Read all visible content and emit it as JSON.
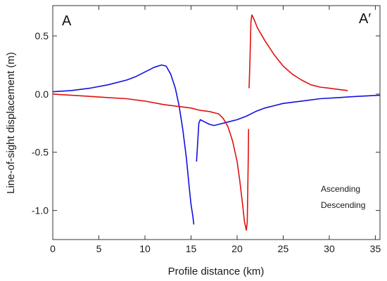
{
  "chart_data": {
    "type": "line",
    "title": "",
    "xlabel": "Profile distance (km)",
    "ylabel": "Line-of-sight displacement (m)",
    "xlim": [
      0,
      35.5
    ],
    "ylim": [
      -1.25,
      0.76
    ],
    "xticks": [
      0,
      5,
      10,
      15,
      20,
      25,
      30,
      35
    ],
    "yticks": [
      0.5,
      0.0,
      -0.5,
      -1.0
    ],
    "ytick_labels": [
      "0.5",
      "0.0",
      "-0.5",
      "-1.0"
    ],
    "grid": false,
    "legend_position": "bottom-right",
    "annotations": [
      {
        "text": "A",
        "position": "top-left"
      },
      {
        "text": "A′",
        "position": "top-right"
      }
    ],
    "series": [
      {
        "name": "Ascending",
        "color": "#1010e0",
        "segments": [
          [
            [
              0,
              0.02
            ],
            [
              2,
              0.03
            ],
            [
              4,
              0.05
            ],
            [
              6,
              0.08
            ],
            [
              8,
              0.12
            ],
            [
              9,
              0.15
            ],
            [
              10,
              0.19
            ],
            [
              11,
              0.23
            ],
            [
              11.8,
              0.25
            ],
            [
              12.3,
              0.24
            ],
            [
              12.8,
              0.17
            ],
            [
              13.3,
              0.05
            ],
            [
              13.7,
              -0.1
            ],
            [
              14.1,
              -0.3
            ],
            [
              14.5,
              -0.55
            ],
            [
              14.8,
              -0.8
            ],
            [
              15.0,
              -0.95
            ],
            [
              15.2,
              -1.05
            ],
            [
              15.3,
              -1.12
            ]
          ],
          [
            [
              15.6,
              -0.58
            ],
            [
              15.75,
              -0.38
            ],
            [
              15.85,
              -0.25
            ],
            [
              16.0,
              -0.22
            ],
            [
              16.5,
              -0.24
            ],
            [
              17,
              -0.26
            ],
            [
              17.5,
              -0.27
            ],
            [
              18,
              -0.26
            ],
            [
              19,
              -0.24
            ],
            [
              20,
              -0.22
            ],
            [
              21,
              -0.19
            ],
            [
              22,
              -0.15
            ],
            [
              23,
              -0.12
            ],
            [
              24,
              -0.1
            ],
            [
              25,
              -0.08
            ],
            [
              27,
              -0.06
            ],
            [
              29,
              -0.04
            ],
            [
              31,
              -0.03
            ],
            [
              33,
              -0.02
            ],
            [
              35.5,
              -0.01
            ]
          ]
        ]
      },
      {
        "name": "Descending",
        "color": "#e01010",
        "segments": [
          [
            [
              0,
              0.0
            ],
            [
              2,
              -0.01
            ],
            [
              4,
              -0.02
            ],
            [
              6,
              -0.03
            ],
            [
              8,
              -0.04
            ],
            [
              10,
              -0.06
            ],
            [
              12,
              -0.09
            ],
            [
              14,
              -0.11
            ],
            [
              15,
              -0.12
            ],
            [
              16,
              -0.14
            ],
            [
              17,
              -0.15
            ],
            [
              18,
              -0.17
            ],
            [
              18.5,
              -0.21
            ],
            [
              19,
              -0.28
            ],
            [
              19.5,
              -0.4
            ],
            [
              20,
              -0.58
            ],
            [
              20.3,
              -0.75
            ],
            [
              20.6,
              -0.95
            ],
            [
              20.8,
              -1.1
            ],
            [
              21.0,
              -1.17
            ],
            [
              21.1,
              -1.1
            ],
            [
              21.2,
              -0.6
            ],
            [
              21.25,
              -0.3
            ]
          ],
          [
            [
              21.3,
              0.05
            ],
            [
              21.4,
              0.3
            ],
            [
              21.5,
              0.62
            ],
            [
              21.6,
              0.68
            ],
            [
              21.8,
              0.65
            ],
            [
              22.2,
              0.57
            ],
            [
              23,
              0.46
            ],
            [
              24,
              0.34
            ],
            [
              25,
              0.24
            ],
            [
              26,
              0.17
            ],
            [
              27,
              0.12
            ],
            [
              28,
              0.08
            ],
            [
              29,
              0.06
            ],
            [
              30,
              0.05
            ],
            [
              31,
              0.04
            ],
            [
              32,
              0.03
            ]
          ]
        ]
      }
    ]
  },
  "legend": {
    "items": [
      {
        "name": "Ascending",
        "color": "#1010e0"
      },
      {
        "name": "Descending",
        "color": "#e01010"
      }
    ]
  }
}
